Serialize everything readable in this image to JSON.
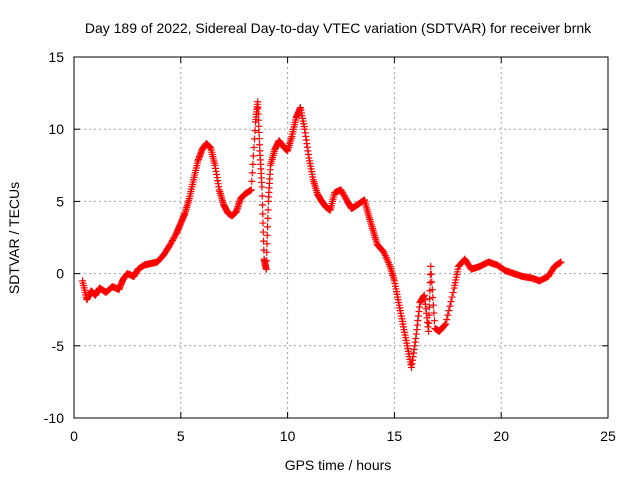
{
  "chart_data": {
    "type": "scatter",
    "title": "Day 189 of 2022, Sidereal Day-to-day VTEC variation (SDTVAR) for receiver brnk",
    "xlabel": "GPS time / hours",
    "ylabel": "SDTVAR / TECUs",
    "xlim": [
      0,
      25
    ],
    "ylim": [
      -10,
      15
    ],
    "x_ticks": [
      "0",
      "5",
      "10",
      "15",
      "20",
      "25"
    ],
    "y_ticks": [
      "-10",
      "-5",
      "0",
      "5",
      "10",
      "15"
    ],
    "grid": true,
    "marker": "+",
    "series": [
      {
        "name": "SDTVAR",
        "color": "#ff0000",
        "x": [
          0.4,
          0.6,
          0.8,
          1.0,
          1.2,
          1.5,
          1.8,
          2.1,
          2.3,
          2.5,
          2.8,
          3.0,
          3.3,
          3.6,
          3.9,
          4.2,
          4.5,
          4.8,
          5.0,
          5.2,
          5.4,
          5.6,
          5.8,
          6.0,
          6.2,
          6.4,
          6.6,
          6.8,
          7.0,
          7.2,
          7.4,
          7.6,
          7.8,
          8.0,
          8.3,
          8.5,
          8.6,
          8.7,
          8.8,
          8.9,
          9.0,
          9.1,
          9.2,
          9.4,
          9.6,
          9.8,
          10.0,
          10.2,
          10.4,
          10.6,
          10.8,
          11.0,
          11.2,
          11.4,
          11.6,
          11.8,
          12.0,
          12.2,
          12.5,
          12.8,
          13.0,
          13.3,
          13.6,
          13.8,
          14.0,
          14.2,
          14.5,
          14.8,
          15.0,
          15.2,
          15.4,
          15.6,
          15.8,
          16.0,
          16.2,
          16.4,
          16.6,
          16.7,
          16.9,
          17.1,
          17.4,
          17.8,
          18.0,
          18.3,
          18.6,
          19.0,
          19.4,
          19.8,
          20.2,
          20.6,
          21.0,
          21.4,
          21.8,
          22.2,
          22.5,
          22.8
        ],
        "y": [
          -0.5,
          -1.8,
          -1.2,
          -1.5,
          -1.0,
          -1.3,
          -0.9,
          -1.1,
          -0.4,
          0.0,
          -0.2,
          0.3,
          0.6,
          0.7,
          0.8,
          1.3,
          2.0,
          2.8,
          3.5,
          4.2,
          5.2,
          6.5,
          7.8,
          8.6,
          9.0,
          8.7,
          7.5,
          5.8,
          4.8,
          4.2,
          4.0,
          4.3,
          5.2,
          5.5,
          5.8,
          10.5,
          11.9,
          8.5,
          6.0,
          1.0,
          0.3,
          5.0,
          7.5,
          8.6,
          9.2,
          8.8,
          8.5,
          9.5,
          10.8,
          11.5,
          10.0,
          8.0,
          6.5,
          5.5,
          5.0,
          4.6,
          4.4,
          5.6,
          5.8,
          5.0,
          4.5,
          4.8,
          5.1,
          4.0,
          3.0,
          2.0,
          1.5,
          0.5,
          -0.5,
          -2.0,
          -3.5,
          -5.0,
          -6.5,
          -4.5,
          -2.0,
          -1.5,
          -4.0,
          0.5,
          -3.8,
          -4.0,
          -3.5,
          -1.0,
          0.5,
          1.0,
          0.3,
          0.5,
          0.8,
          0.6,
          0.2,
          0.0,
          -0.2,
          -0.3,
          -0.5,
          -0.2,
          0.5,
          0.8
        ]
      }
    ]
  }
}
